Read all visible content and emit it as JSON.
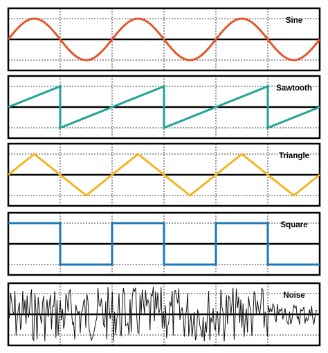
{
  "panels": [
    {
      "id": "sine",
      "label": "Sine",
      "waveform": "sine",
      "color": "#e8532a",
      "cycles": 3
    },
    {
      "id": "sawtooth",
      "label": "Sawtooth",
      "waveform": "sawtooth",
      "color": "#1fa398",
      "cycles": 3
    },
    {
      "id": "triangle",
      "label": "Triangle",
      "waveform": "triangle",
      "color": "#f5b41c",
      "cycles": 3
    },
    {
      "id": "square",
      "label": "Square",
      "waveform": "square",
      "color": "#1a7ab8",
      "cycles": 3
    },
    {
      "id": "noise",
      "label": "Noise",
      "waveform": "noise",
      "color": "#111111",
      "cycles": 3
    }
  ]
}
